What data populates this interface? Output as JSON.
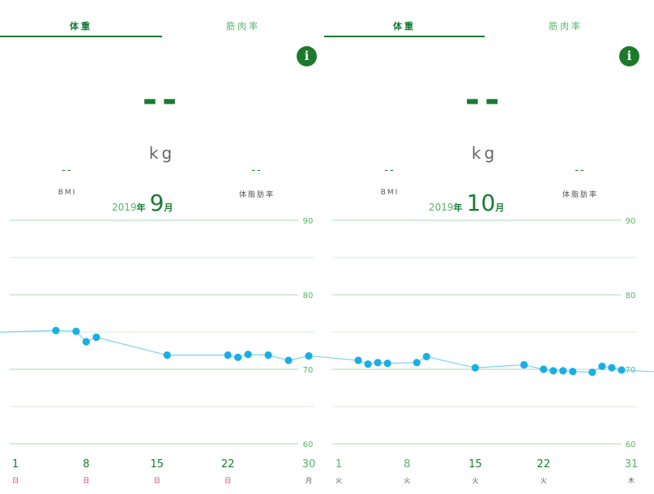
{
  "panels": [
    {
      "tabs": [
        {
          "label": "体重"
        },
        {
          "label": "筋肉率"
        }
      ],
      "info_label": "i",
      "main_value": "--",
      "unit": "kg",
      "bmi": {
        "value": "--",
        "label": "BMI"
      },
      "body_fat": {
        "value": "--",
        "label": "体脂肪率"
      },
      "year": "2019",
      "year_suffix": "年",
      "month": "9",
      "month_suffix": "月"
    },
    {
      "tabs": [
        {
          "label": "体重"
        },
        {
          "label": "筋肉率"
        }
      ],
      "info_label": "i",
      "main_value": "--",
      "unit": "kg",
      "bmi": {
        "value": "--",
        "label": "BMI"
      },
      "body_fat": {
        "value": "--",
        "label": "体脂肪率"
      },
      "year": "2019",
      "year_suffix": "年",
      "month": "10",
      "month_suffix": "月"
    }
  ],
  "colors": {
    "accent": "#1a7a33",
    "light_green": "#58b36d",
    "point": "#1aaee6",
    "line": "#7fd0f0",
    "grid": "#a9d9b5",
    "weekday_sunday": "#e0297a",
    "weekday_other": "#555555"
  },
  "chart_data": [
    {
      "type": "line",
      "ylim": [
        60,
        90
      ],
      "y_ticks": [
        90,
        80,
        70,
        60
      ],
      "x_range": [
        1,
        30
      ],
      "x_ticks": [
        {
          "day": 1,
          "label": "1",
          "weekday": "日",
          "sunday": true
        },
        {
          "day": 8,
          "label": "8",
          "weekday": "日",
          "sunday": true
        },
        {
          "day": 15,
          "label": "15",
          "weekday": "日",
          "sunday": true
        },
        {
          "day": 22,
          "label": "22",
          "weekday": "日",
          "sunday": true
        },
        {
          "day": 30,
          "label": "30",
          "weekday": "月",
          "sunday": false
        }
      ],
      "points": [
        {
          "x": 5,
          "y": 75.2
        },
        {
          "x": 7,
          "y": 75.1
        },
        {
          "x": 8,
          "y": 73.7
        },
        {
          "x": 9,
          "y": 74.3
        },
        {
          "x": 16,
          "y": 71.9
        },
        {
          "x": 22,
          "y": 71.9
        },
        {
          "x": 23,
          "y": 71.6
        },
        {
          "x": 24,
          "y": 72.0
        },
        {
          "x": 26,
          "y": 71.9
        },
        {
          "x": 28,
          "y": 71.2
        },
        {
          "x": 30,
          "y": 71.8
        }
      ]
    },
    {
      "type": "line",
      "ylim": [
        60,
        90
      ],
      "y_ticks": [
        90,
        80,
        70,
        60
      ],
      "x_range": [
        1,
        31
      ],
      "x_ticks": [
        {
          "day": 1,
          "label": "1",
          "weekday": "火",
          "sunday": false
        },
        {
          "day": 8,
          "label": "8",
          "weekday": "火",
          "sunday": false
        },
        {
          "day": 15,
          "label": "15",
          "weekday": "火",
          "sunday": false
        },
        {
          "day": 22,
          "label": "22",
          "weekday": "火",
          "sunday": false
        },
        {
          "day": 31,
          "label": "31",
          "weekday": "木",
          "sunday": false
        }
      ],
      "points": [
        {
          "x": 3,
          "y": 71.2
        },
        {
          "x": 4,
          "y": 70.7
        },
        {
          "x": 5,
          "y": 70.9
        },
        {
          "x": 6,
          "y": 70.8
        },
        {
          "x": 9,
          "y": 70.9
        },
        {
          "x": 10,
          "y": 71.7
        },
        {
          "x": 15,
          "y": 70.2
        },
        {
          "x": 20,
          "y": 70.6
        },
        {
          "x": 22,
          "y": 70.0
        },
        {
          "x": 23,
          "y": 69.8
        },
        {
          "x": 24,
          "y": 69.8
        },
        {
          "x": 25,
          "y": 69.7
        },
        {
          "x": 27,
          "y": 69.6
        },
        {
          "x": 28,
          "y": 70.4
        },
        {
          "x": 29,
          "y": 70.2
        },
        {
          "x": 30,
          "y": 69.9
        }
      ]
    }
  ]
}
